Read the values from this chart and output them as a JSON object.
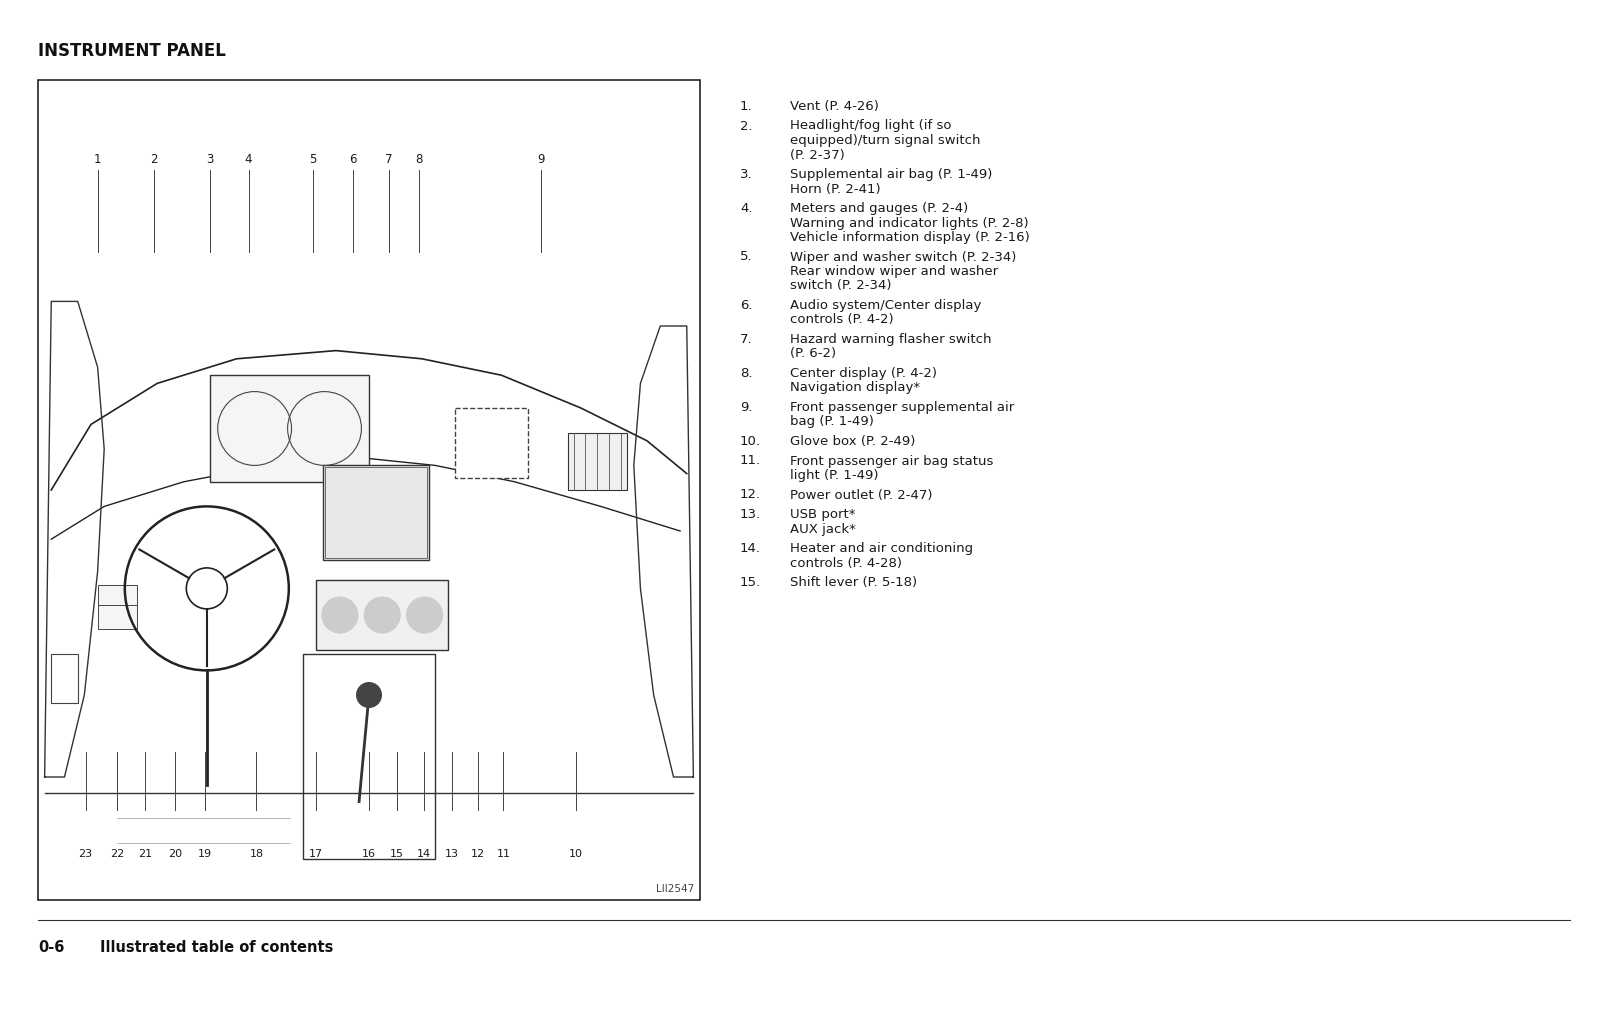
{
  "title": "INSTRUMENT PANEL",
  "footer_num": "0-6",
  "footer_text": "Illustrated table of contents",
  "image_label": "LII2547",
  "bg_color": "#ffffff",
  "text_color": "#1a1a1a",
  "border_color": "#333333",
  "items": [
    {
      "num": "1.",
      "lines": [
        "Vent (P. 4-26)"
      ]
    },
    {
      "num": "2.",
      "lines": [
        "Headlight/fog light (if so",
        "equipped)/turn signal switch",
        "(P. 2-37)"
      ]
    },
    {
      "num": "3.",
      "lines": [
        "Supplemental air bag (P. 1-49)",
        "Horn (P. 2-41)"
      ]
    },
    {
      "num": "4.",
      "lines": [
        "Meters and gauges (P. 2-4)",
        "Warning and indicator lights (P. 2-8)",
        "Vehicle information display (P. 2-16)"
      ]
    },
    {
      "num": "5.",
      "lines": [
        "Wiper and washer switch (P. 2-34)",
        "Rear window wiper and washer",
        "switch (P. 2-34)"
      ]
    },
    {
      "num": "6.",
      "lines": [
        "Audio system/Center display",
        "controls (P. 4-2)"
      ]
    },
    {
      "num": "7.",
      "lines": [
        "Hazard warning flasher switch",
        "(P. 6-2)"
      ]
    },
    {
      "num": "8.",
      "lines": [
        "Center display (P. 4-2)",
        "Navigation display*"
      ]
    },
    {
      "num": "9.",
      "lines": [
        "Front passenger supplemental air",
        "bag (P. 1-49)"
      ]
    },
    {
      "num": "10.",
      "lines": [
        "Glove box (P. 2-49)"
      ]
    },
    {
      "num": "11.",
      "lines": [
        "Front passenger air bag status",
        "light (P. 1-49)"
      ]
    },
    {
      "num": "12.",
      "lines": [
        "Power outlet (P. 2-47)"
      ]
    },
    {
      "num": "13.",
      "lines": [
        "USB port*",
        "AUX jack*"
      ]
    },
    {
      "num": "14.",
      "lines": [
        "Heater and air conditioning",
        "controls (P. 4-28)"
      ]
    },
    {
      "num": "15.",
      "lines": [
        "Shift lever (P. 5-18)"
      ]
    }
  ],
  "title_fontsize": 12,
  "list_fontsize": 9.5,
  "footer_fontsize": 10.5
}
